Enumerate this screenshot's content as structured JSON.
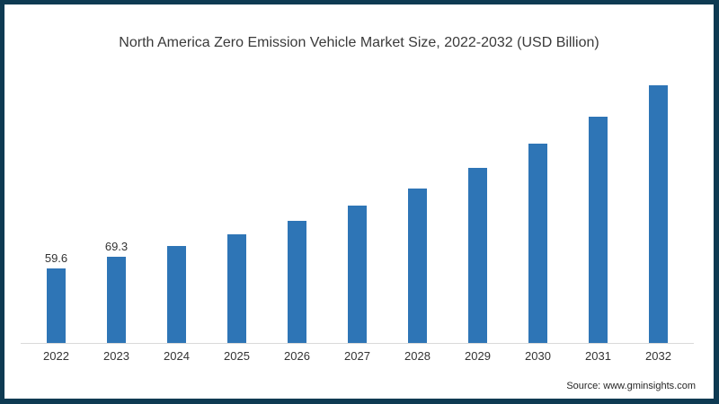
{
  "window": {
    "background": "#ffffff",
    "frame_color": "#0E3A52"
  },
  "title": "North America Zero Emission Vehicle Market Size, 2022-2032 (USD Billion)",
  "source_note": "Source: www.gminsights.com",
  "chart_data": {
    "type": "bar",
    "title": "North America Zero Emission Vehicle Market Size, 2022-2032 (USD Billion)",
    "unit": "USD Billion",
    "categories": [
      "2022",
      "2023",
      "2024",
      "2025",
      "2026",
      "2027",
      "2028",
      "2029",
      "2030",
      "2031",
      "2032"
    ],
    "values": [
      59.6,
      69.3,
      78,
      87,
      98,
      110,
      124,
      141,
      160,
      182,
      207
    ],
    "data_labels": [
      "59.6",
      "69.3",
      "",
      "",
      "",
      "",
      "",
      "",
      "",
      "",
      ""
    ],
    "xlabel": "",
    "ylabel": "",
    "ylim": [
      0,
      213.5
    ],
    "grid": false,
    "legend": false,
    "bar_color": "#2E75B6",
    "axis_line_color": "#D9D9D9",
    "label_color": "#333333"
  }
}
